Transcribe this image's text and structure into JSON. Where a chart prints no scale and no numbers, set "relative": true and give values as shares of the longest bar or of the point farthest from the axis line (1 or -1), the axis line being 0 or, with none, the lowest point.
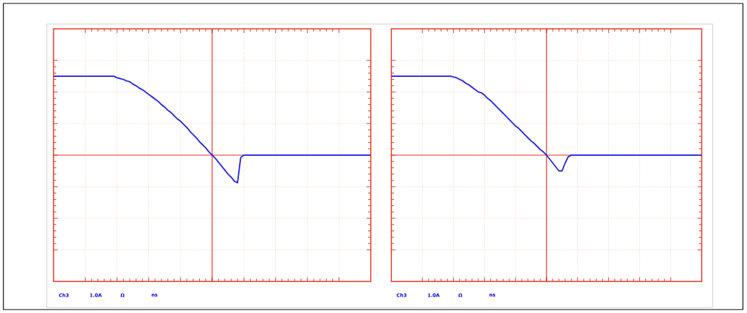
{
  "chart_data": [
    {
      "type": "line",
      "relative": true,
      "grid": true,
      "tick_labels": false,
      "marker": "none",
      "line_style": "solid",
      "categories": [
        null,
        null,
        null,
        null,
        null,
        null,
        null,
        null,
        null,
        null,
        null,
        null,
        null,
        null,
        null,
        null,
        null,
        null,
        null,
        null,
        null,
        null,
        null,
        null,
        null,
        null,
        null,
        null,
        null,
        null,
        null,
        null,
        null,
        null,
        null,
        null,
        null,
        null,
        null,
        null,
        null,
        null,
        null,
        null,
        null,
        null,
        null,
        null,
        null,
        null,
        null,
        null,
        null,
        null,
        null,
        null,
        null,
        null,
        null,
        null,
        null,
        null,
        null,
        null,
        null,
        null,
        null,
        null,
        null,
        null,
        null,
        null,
        null,
        null,
        null,
        null,
        null,
        null,
        null,
        null,
        null,
        null,
        null,
        null,
        null,
        null,
        null,
        null,
        null,
        null,
        null,
        null,
        null,
        null,
        null,
        null,
        null,
        null,
        null,
        null,
        null
      ],
      "series": [
        {
          "color": "#2a2ae0",
          "values": [
            1,
            1,
            1,
            1,
            1,
            1,
            1,
            1,
            1,
            1,
            1,
            1,
            1,
            1,
            1,
            1,
            1,
            1,
            1,
            1,
            0.98,
            0.97,
            0.96,
            0.94,
            0.93,
            0.9,
            0.88,
            0.85,
            0.83,
            0.8,
            0.77,
            0.74,
            0.71,
            0.68,
            0.64,
            0.61,
            0.57,
            0.54,
            0.5,
            0.46,
            0.43,
            0.39,
            0.35,
            0.3,
            0.26,
            0.22,
            0.17,
            0.13,
            0.09,
            0.04,
            0,
            -0.04,
            -0.09,
            -0.14,
            -0.19,
            -0.24,
            -0.28,
            -0.33,
            -0.35,
            -0.03,
            0,
            0,
            0,
            0,
            0,
            0,
            0,
            0,
            0,
            0,
            0,
            0,
            0,
            0,
            0,
            0,
            0,
            0,
            0,
            0,
            0,
            0,
            0,
            0,
            0,
            0,
            0,
            0,
            0,
            0,
            0,
            0,
            0,
            0,
            0,
            0,
            0,
            0,
            0,
            0,
            0
          ]
        }
      ],
      "ref_lines": [
        {
          "axis": "y",
          "value": 0,
          "color": "#e8321e"
        }
      ],
      "annotations": [
        "Ch3",
        "1.0A",
        "Ω",
        "ns"
      ]
    },
    {
      "type": "line",
      "relative": true,
      "grid": true,
      "tick_labels": false,
      "marker": "none",
      "line_style": "solid",
      "categories": [
        null,
        null,
        null,
        null,
        null,
        null,
        null,
        null,
        null,
        null,
        null,
        null,
        null,
        null,
        null,
        null,
        null,
        null,
        null,
        null,
        null,
        null,
        null,
        null,
        null,
        null,
        null,
        null,
        null,
        null,
        null,
        null,
        null,
        null,
        null,
        null,
        null,
        null,
        null,
        null,
        null,
        null,
        null,
        null,
        null,
        null,
        null,
        null,
        null,
        null,
        null,
        null,
        null,
        null,
        null,
        null,
        null,
        null,
        null,
        null,
        null,
        null,
        null,
        null,
        null,
        null,
        null,
        null,
        null,
        null,
        null,
        null,
        null,
        null,
        null,
        null,
        null,
        null,
        null,
        null,
        null,
        null,
        null,
        null,
        null,
        null,
        null,
        null,
        null,
        null,
        null,
        null,
        null,
        null,
        null,
        null,
        null,
        null,
        null,
        null,
        null
      ],
      "series": [
        {
          "color": "#2a2ae0",
          "values": [
            1,
            1,
            1,
            1,
            1,
            1,
            1,
            1,
            1,
            1,
            1,
            1,
            1,
            1,
            1,
            1,
            1,
            1,
            1,
            1,
            0.99,
            0.98,
            0.96,
            0.94,
            0.91,
            0.89,
            0.86,
            0.83,
            0.8,
            0.79,
            0.76,
            0.72,
            0.69,
            0.65,
            0.61,
            0.57,
            0.53,
            0.49,
            0.45,
            0.41,
            0.37,
            0.34,
            0.3,
            0.26,
            0.22,
            0.18,
            0.15,
            0.11,
            0.07,
            0.04,
            0,
            -0.05,
            -0.1,
            -0.15,
            -0.2,
            -0.2,
            -0.1,
            -0.02,
            0,
            0,
            0,
            0,
            0,
            0,
            0,
            0,
            0,
            0,
            0,
            0,
            0,
            0,
            0,
            0,
            0,
            0,
            0,
            0,
            0,
            0,
            0,
            0,
            0,
            0,
            0,
            0,
            0,
            0,
            0,
            0,
            0,
            0,
            0,
            0,
            0,
            0,
            0,
            0,
            0,
            0,
            0
          ]
        }
      ],
      "ref_lines": [
        {
          "axis": "y",
          "value": 0,
          "color": "#e8321e"
        }
      ],
      "annotations": [
        "Ch3",
        "1.0A",
        "Ω",
        "ns"
      ]
    }
  ]
}
